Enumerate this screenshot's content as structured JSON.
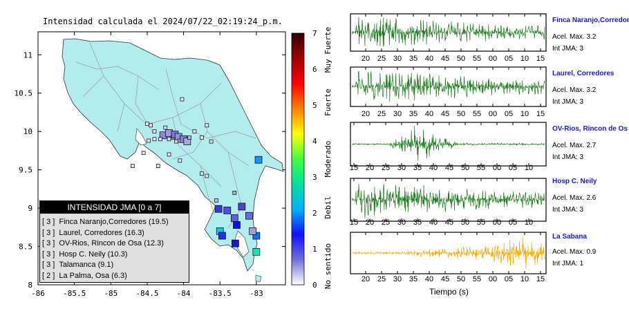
{
  "title": "Intensidad calculada el 2024/07/22_02:19:24_p.m.",
  "map": {
    "lon_ticks": [
      "-86",
      "-85.5",
      "-85",
      "-84.5",
      "-84",
      "-83.5",
      "-83"
    ],
    "lat_ticks": [
      "8",
      "8.5",
      "9",
      "9.5",
      "10",
      "10.5",
      "11"
    ],
    "land_color": "#b3ecec",
    "sea_color": "#ffffff",
    "road_color": "#9a9a9a"
  },
  "colorbar": {
    "ticks": [
      "0",
      "1",
      "2",
      "3",
      "4",
      "5",
      "6",
      "7"
    ],
    "labels": [
      "No sentido",
      "Debil",
      "Moderado",
      "Fuerte",
      "Muy Fuerte"
    ],
    "stops": [
      "#ffffff",
      "#7070d8",
      "#1010ff",
      "#00b0ff",
      "#00e0a0",
      "#40ff40",
      "#ffff00",
      "#ff8000",
      "#ff0000",
      "#a00000",
      "#300000"
    ]
  },
  "legend": {
    "title": "INTENSIDAD JMA [0 a 7]",
    "items": [
      {
        "level": "[ 3 ]",
        "text": "Finca Naranjo,Corredores (19.5)"
      },
      {
        "level": "[ 3 ]",
        "text": "Laurel, Corredores (16.3)"
      },
      {
        "level": "[ 3 ]",
        "text": "OV-Rios, Rincon de Osa (12.3)"
      },
      {
        "level": "[ 3 ]",
        "text": "Hosp C. Neily (10.3)"
      },
      {
        "level": "[ 3 ]",
        "text": "Talamanca (9.1)"
      },
      {
        "level": "[ 2 ]",
        "text": "La Palma, Osa (6.3)"
      }
    ]
  },
  "chart_data": {
    "type": "scatter",
    "xlim": [
      -86,
      -82.6
    ],
    "ylim": [
      8,
      11.3
    ],
    "stations": [
      {
        "lon": -82.97,
        "lat": 9.63,
        "color": "#1890ff"
      },
      {
        "lon": -83.5,
        "lat": 8.7,
        "color": "#00c8ff"
      },
      {
        "lon": -83.47,
        "lat": 8.64,
        "color": "#2030ff"
      },
      {
        "lon": -83.27,
        "lat": 8.78,
        "color": "#1010e0"
      },
      {
        "lon": -83.29,
        "lat": 8.54,
        "color": "#1818d0"
      },
      {
        "lon": -83.0,
        "lat": 8.64,
        "color": "#1070ff"
      },
      {
        "lon": -83.0,
        "lat": 8.43,
        "color": "#20e0b0"
      },
      {
        "lon": -83.52,
        "lat": 8.99,
        "color": "#3a3ad0"
      },
      {
        "lon": -83.4,
        "lat": 8.97,
        "color": "#5050d8"
      },
      {
        "lon": -83.2,
        "lat": 9.02,
        "color": "#4848d0"
      },
      {
        "lon": -83.3,
        "lat": 8.87,
        "color": "#6060d8"
      },
      {
        "lon": -83.1,
        "lat": 8.9,
        "color": "#6a6adc"
      },
      {
        "lon": -83.3,
        "lat": 9.2,
        "color": "#b0b0e0"
      },
      {
        "lon": -83.05,
        "lat": 8.7,
        "color": "#a0a0e0"
      },
      {
        "lon": -83.55,
        "lat": 9.1,
        "color": "#c0c0e8"
      },
      {
        "lon": -84.28,
        "lat": 9.95,
        "color": "#8a8ad8"
      },
      {
        "lon": -84.2,
        "lat": 9.98,
        "color": "#9a9adc"
      },
      {
        "lon": -84.15,
        "lat": 9.92,
        "color": "#b0b0e4"
      },
      {
        "lon": -84.12,
        "lat": 9.96,
        "color": "#7878d0"
      },
      {
        "lon": -84.07,
        "lat": 9.93,
        "color": "#9090d8"
      },
      {
        "lon": -84.05,
        "lat": 9.88,
        "color": "#c8c8ec"
      },
      {
        "lon": -84.0,
        "lat": 9.9,
        "color": "#8080d4"
      },
      {
        "lon": -83.95,
        "lat": 9.87,
        "color": "#a8a8e0"
      },
      {
        "lon": -84.1,
        "lat": 9.87,
        "color": "#d0d0ee"
      },
      {
        "lon": -84.2,
        "lat": 9.9,
        "color": "#dcdcf0"
      },
      {
        "lon": -84.32,
        "lat": 9.9,
        "color": "#e0e0f0"
      },
      {
        "lon": -84.4,
        "lat": 10.0,
        "color": "#e0e0f0"
      },
      {
        "lon": -84.4,
        "lat": 9.9,
        "color": "#e8e8f4"
      },
      {
        "lon": -84.48,
        "lat": 9.88,
        "color": "#e8e8f4"
      },
      {
        "lon": -84.45,
        "lat": 10.08,
        "color": "#e0e0f0"
      },
      {
        "lon": -84.25,
        "lat": 10.05,
        "color": "#d8d8ee"
      },
      {
        "lon": -83.92,
        "lat": 9.92,
        "color": "#b8b8e4"
      },
      {
        "lon": -83.85,
        "lat": 10.0,
        "color": "#e0e0f0"
      },
      {
        "lon": -83.75,
        "lat": 9.92,
        "color": "#e8e8f4"
      },
      {
        "lon": -84.02,
        "lat": 10.42,
        "color": "#e8e8f4"
      },
      {
        "lon": -83.68,
        "lat": 10.08,
        "color": "#e4e4f2"
      },
      {
        "lon": -83.62,
        "lat": 9.87,
        "color": "#d8d8ee"
      },
      {
        "lon": -84.7,
        "lat": 9.55,
        "color": "#e0e0f0"
      },
      {
        "lon": -84.35,
        "lat": 9.55,
        "color": "#dcdcf0"
      },
      {
        "lon": -84.05,
        "lat": 9.62,
        "color": "#e0e0f0"
      },
      {
        "lon": -84.55,
        "lat": 9.72,
        "color": "#e8e8f4"
      },
      {
        "lon": -84.2,
        "lat": 9.7,
        "color": "#e4e4f2"
      },
      {
        "lon": -83.75,
        "lat": 9.45,
        "color": "#dcdcf0"
      },
      {
        "lon": -83.68,
        "lat": 9.42,
        "color": "#e0e0f0"
      },
      {
        "lon": -84.5,
        "lat": 10.1,
        "color": "#e8e8f4"
      }
    ],
    "traces": [
      {
        "name": "Finca Naranjo,Corredor",
        "accel_label": "Acel. Max. 3.2",
        "int_label": "Int JMA: 3",
        "color": "#1f7a1f",
        "xticks": [
          "20",
          "25",
          "30",
          "35",
          "40",
          "45",
          "50",
          "55",
          "00",
          "05",
          "10",
          "15"
        ],
        "shape": "early"
      },
      {
        "name": "Laurel, Corredores",
        "accel_label": "Acel. Max. 3.2",
        "int_label": "Int JMA: 3",
        "color": "#1f7a1f",
        "xticks": [
          "20",
          "25",
          "30",
          "35",
          "40",
          "45",
          "50",
          "55",
          "00",
          "05",
          "10",
          "15"
        ],
        "shape": "early"
      },
      {
        "name": "OV-Rios, Rincon de Os",
        "accel_label": "Acel. Max. 2.7",
        "int_label": "Int JMA: 3",
        "color": "#1f7a1f",
        "xticks": [
          "15",
          "20",
          "25",
          "30",
          "35",
          "40",
          "45",
          "50",
          "55",
          "00",
          "05",
          "10"
        ],
        "shape": "mid"
      },
      {
        "name": "Hosp C. Neily",
        "accel_label": "Acel. Max. 2.6",
        "int_label": "Int JMA: 3",
        "color": "#1f7a1f",
        "xticks": [
          "15",
          "20",
          "25",
          "30",
          "35",
          "40",
          "45",
          "50",
          "55",
          "00",
          "05",
          "10"
        ],
        "shape": "early"
      },
      {
        "name": "La Sabana",
        "accel_label": "Acel. Max. 0.9",
        "int_label": "Int JMA: 1",
        "color": "#ffaa00",
        "xticks": [
          "20",
          "25",
          "30",
          "35",
          "40",
          "45",
          "50",
          "55",
          "00",
          "05",
          "10",
          "15"
        ],
        "shape": "late"
      }
    ],
    "xlabel": "Tiempo (s)"
  }
}
